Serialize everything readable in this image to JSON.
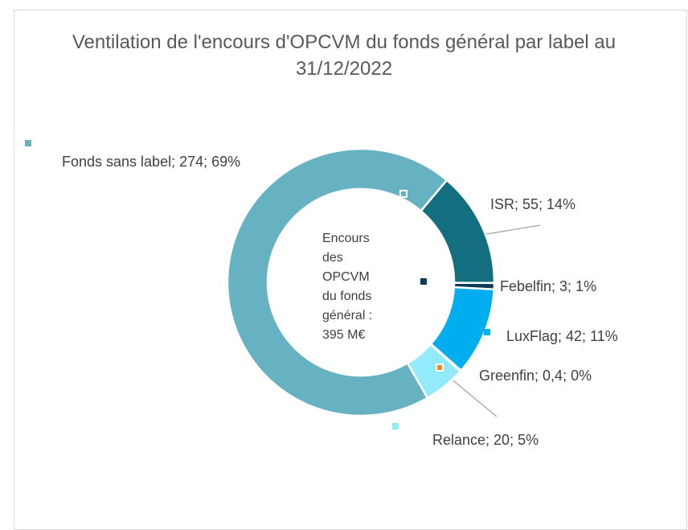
{
  "chart_data": {
    "type": "donut",
    "title": "Ventilation de l'encours d'OPCVM du fonds général par label au 31/12/2022",
    "annotation": "Encours des OPCVM du fonds général : 395 M€",
    "values": [
      274,
      55,
      3,
      42,
      0.4,
      20
    ],
    "value_labels": [
      "Fonds sans label; 274; 69%",
      "ISR; 55; 14%",
      "Febelfin; 3; 1%",
      "LuxFlag; 42; 11%",
      "Greenfin; 0,4; 0%",
      "Relance; 20; 5%"
    ],
    "colors": [
      "#66b2c2",
      "#136f80",
      "#0d3d56",
      "#00adef",
      "#f28a1e",
      "#93eafb"
    ]
  }
}
